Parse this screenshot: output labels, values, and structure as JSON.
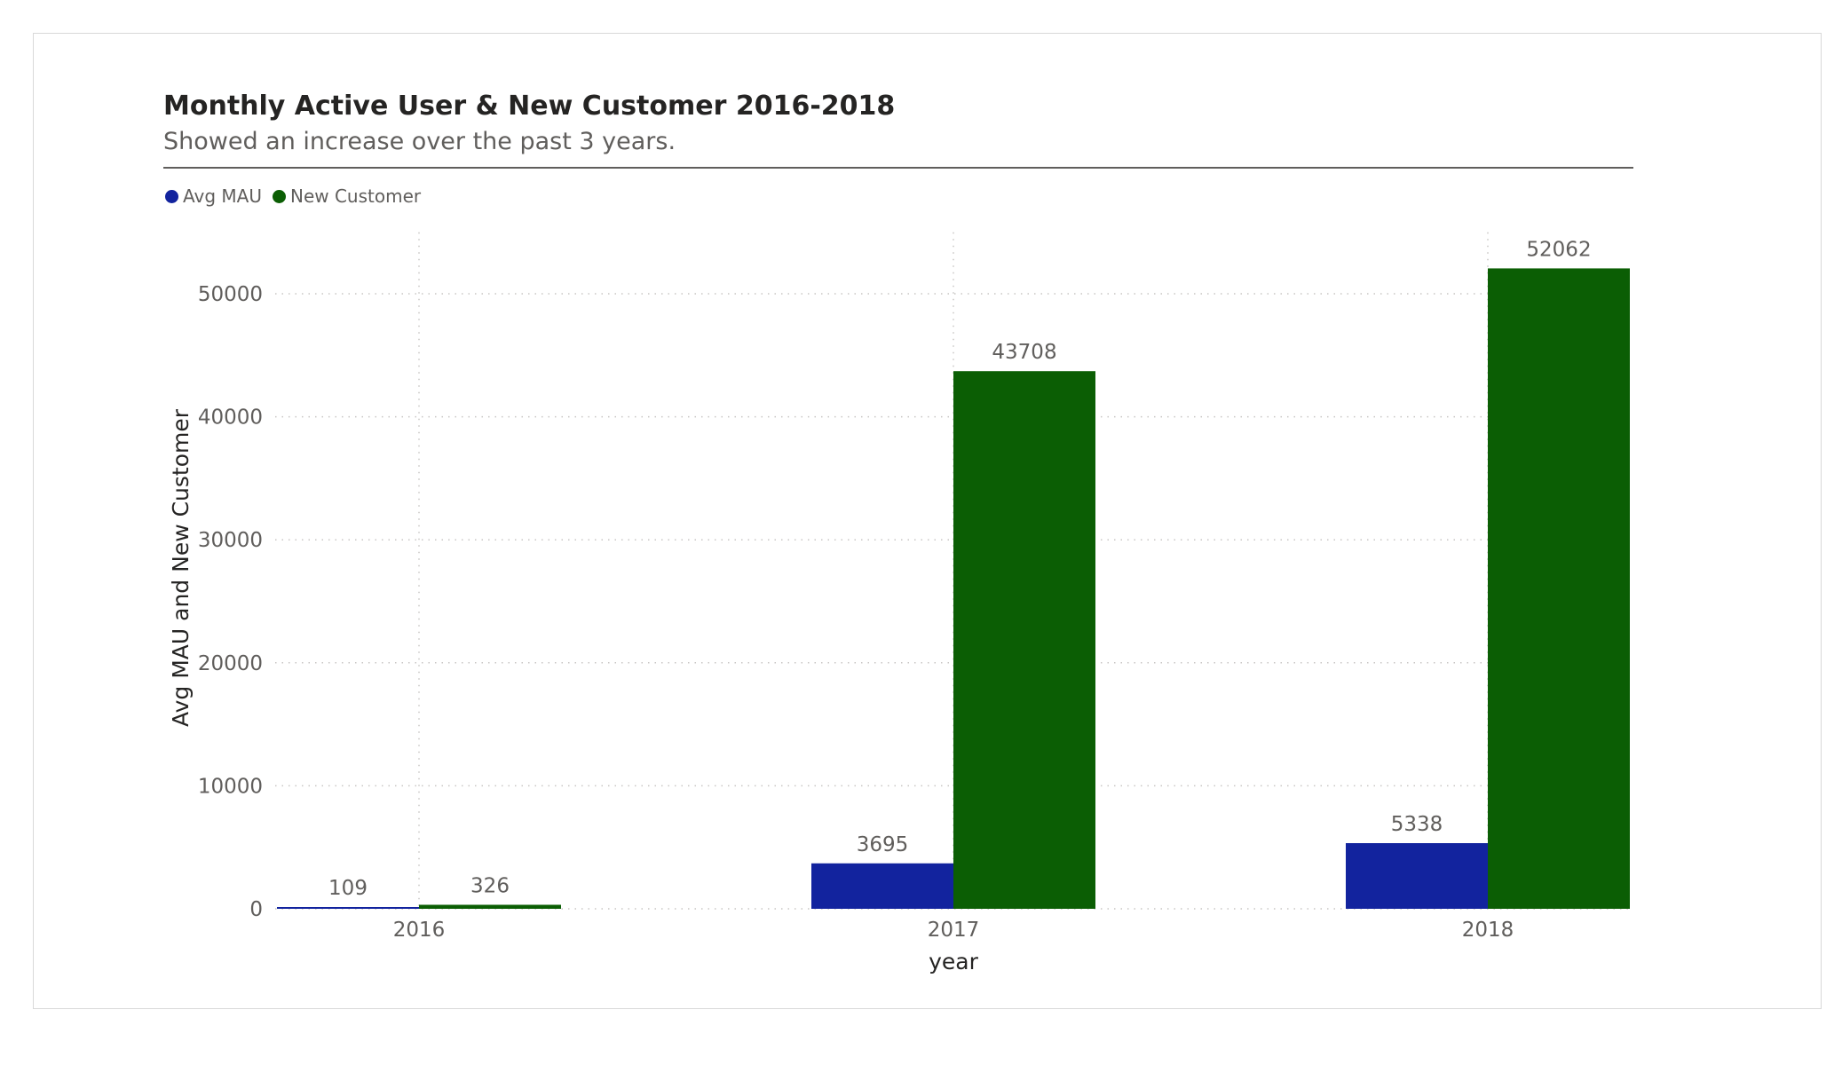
{
  "chart_data": {
    "type": "bar",
    "title": "Monthly Active User & New Customer 2016-2018",
    "subtitle": "Showed an increase over the past 3 years.",
    "xlabel": "year",
    "ylabel": "Avg MAU and New Customer",
    "categories": [
      "2016",
      "2017",
      "2018"
    ],
    "series": [
      {
        "name": "Avg MAU",
        "color": "#12239e",
        "values": [
          109,
          3695,
          5338
        ]
      },
      {
        "name": "New Customer",
        "color": "#0b5e04",
        "values": [
          326,
          43708,
          52062
        ]
      }
    ],
    "ylim": [
      0,
      55000
    ],
    "yticks": [
      0,
      10000,
      20000,
      30000,
      40000,
      50000
    ],
    "grid": "dotted",
    "legend_position": "top-left",
    "data_labels": true
  }
}
